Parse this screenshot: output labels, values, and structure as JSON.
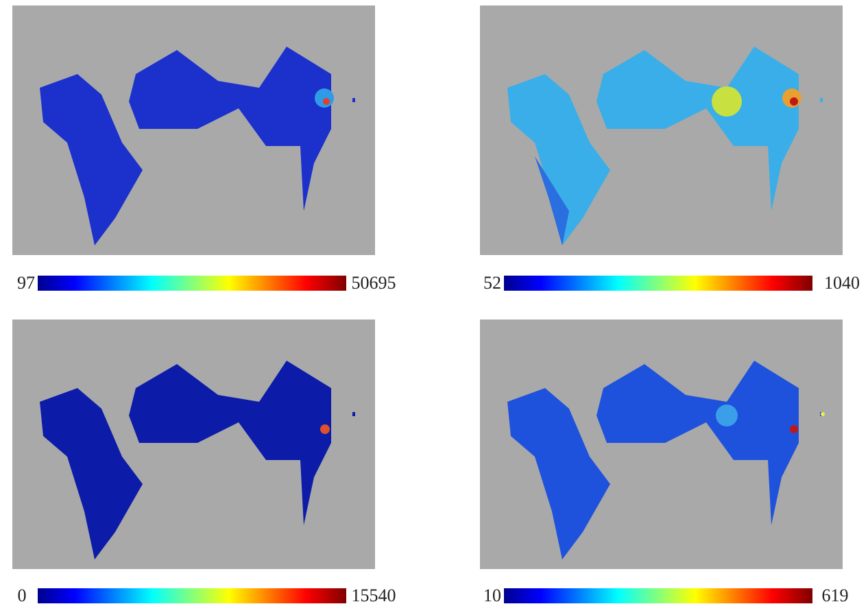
{
  "panels": [
    {
      "min": "97",
      "max": "50695"
    },
    {
      "min": "52",
      "max": "1040"
    },
    {
      "min": "0",
      "max": "15540"
    },
    {
      "min": "10",
      "max": "619"
    }
  ]
}
